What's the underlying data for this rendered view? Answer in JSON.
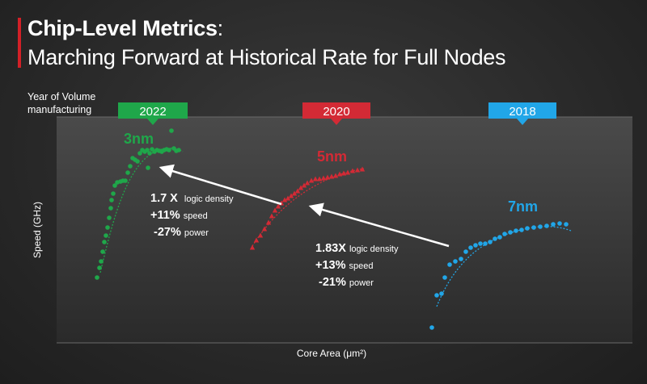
{
  "title": {
    "bold": "Chip-Level Metrics",
    "colon": ":",
    "subtitle": "Marching Forward at Historical Rate for Full Nodes"
  },
  "year_label": {
    "line1": "Year of Volume",
    "line2": "manufacturing"
  },
  "colors": {
    "accent_red": "#d32027",
    "green": "#1fa74a",
    "red": "#d32a35",
    "blue": "#21a6e8",
    "arrow": "#ffffff"
  },
  "chart_data": {
    "type": "scatter",
    "xlabel": "Core Area (μm²)",
    "ylabel": "Speed (GHz)",
    "grid": false,
    "series": [
      {
        "name": "3nm",
        "year": "2022",
        "marker": "circle"
      },
      {
        "name": "5nm",
        "year": "2020",
        "marker": "triangle"
      },
      {
        "name": "7nm",
        "year": "2018",
        "marker": "circle"
      }
    ],
    "annotations": [
      {
        "lines": [
          {
            "value": "1.7 X",
            "label": "logic density"
          },
          {
            "value": "+11%",
            "label": "speed"
          },
          {
            "value": "-27%",
            "label": "power"
          }
        ]
      },
      {
        "lines": [
          {
            "value": "1.83X",
            "label": "logic density"
          },
          {
            "value": "+13%",
            "label": "speed"
          },
          {
            "value": "-21%",
            "label": "power"
          }
        ]
      }
    ]
  }
}
